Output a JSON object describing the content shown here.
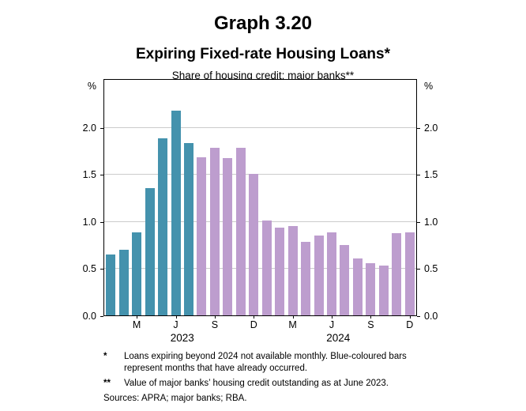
{
  "header": {
    "graph_number": "Graph 3.20"
  },
  "chart_data": {
    "type": "bar",
    "title": "Expiring Fixed-rate Housing Loans*",
    "subtitle": "Share of housing credit; major banks**",
    "unit": "%",
    "ylim": [
      0,
      2.5
    ],
    "yticks": [
      0,
      0.5,
      1.0,
      1.5,
      2.0
    ],
    "ytick_labels": [
      "0.0",
      "0.5",
      "1.0",
      "1.5",
      "2.0"
    ],
    "grid": true,
    "legend": "none",
    "colors": {
      "occurred": "#4492ad",
      "future": "#bd9dce"
    },
    "color_meaning": {
      "occurred": "blue-coloured bars: months that have already occurred",
      "future": "purple bars: future months"
    },
    "years": [
      {
        "label": "2023",
        "start": 0,
        "end": 11
      },
      {
        "label": "2024",
        "start": 12,
        "end": 23
      }
    ],
    "series": [
      {
        "month": "Jan 2023",
        "label": "",
        "value": 0.65,
        "status": "occurred"
      },
      {
        "month": "Feb 2023",
        "label": "",
        "value": 0.7,
        "status": "occurred"
      },
      {
        "month": "Mar 2023",
        "label": "M",
        "value": 0.88,
        "status": "occurred"
      },
      {
        "month": "Apr 2023",
        "label": "",
        "value": 1.35,
        "status": "occurred"
      },
      {
        "month": "May 2023",
        "label": "",
        "value": 1.88,
        "status": "occurred"
      },
      {
        "month": "Jun 2023",
        "label": "J",
        "value": 2.17,
        "status": "occurred"
      },
      {
        "month": "Jul 2023",
        "label": "",
        "value": 1.83,
        "status": "occurred"
      },
      {
        "month": "Aug 2023",
        "label": "",
        "value": 1.68,
        "status": "future"
      },
      {
        "month": "Sep 2023",
        "label": "S",
        "value": 1.78,
        "status": "future"
      },
      {
        "month": "Oct 2023",
        "label": "",
        "value": 1.67,
        "status": "future"
      },
      {
        "month": "Nov 2023",
        "label": "",
        "value": 1.78,
        "status": "future"
      },
      {
        "month": "Dec 2023",
        "label": "D",
        "value": 1.5,
        "status": "future"
      },
      {
        "month": "Jan 2024",
        "label": "",
        "value": 1.01,
        "status": "future"
      },
      {
        "month": "Feb 2024",
        "label": "",
        "value": 0.93,
        "status": "future"
      },
      {
        "month": "Mar 2024",
        "label": "M",
        "value": 0.95,
        "status": "future"
      },
      {
        "month": "Apr 2024",
        "label": "",
        "value": 0.78,
        "status": "future"
      },
      {
        "month": "May 2024",
        "label": "",
        "value": 0.85,
        "status": "future"
      },
      {
        "month": "Jun 2024",
        "label": "J",
        "value": 0.88,
        "status": "future"
      },
      {
        "month": "Jul 2024",
        "label": "",
        "value": 0.75,
        "status": "future"
      },
      {
        "month": "Aug 2024",
        "label": "",
        "value": 0.6,
        "status": "future"
      },
      {
        "month": "Sep 2024",
        "label": "S",
        "value": 0.55,
        "status": "future"
      },
      {
        "month": "Oct 2024",
        "label": "",
        "value": 0.53,
        "status": "future"
      },
      {
        "month": "Nov 2024",
        "label": "",
        "value": 0.87,
        "status": "future"
      },
      {
        "month": "Dec 2024",
        "label": "D",
        "value": 0.88,
        "status": "future"
      }
    ]
  },
  "footnotes": [
    {
      "marker": "*",
      "text": "Loans expiring beyond 2024 not available monthly. Blue-coloured bars represent months that have already occurred."
    },
    {
      "marker": "**",
      "text": "Value of major banks’ housing credit outstanding as at June 2023."
    }
  ],
  "sources": {
    "text": "Sources: APRA; major banks; RBA."
  }
}
